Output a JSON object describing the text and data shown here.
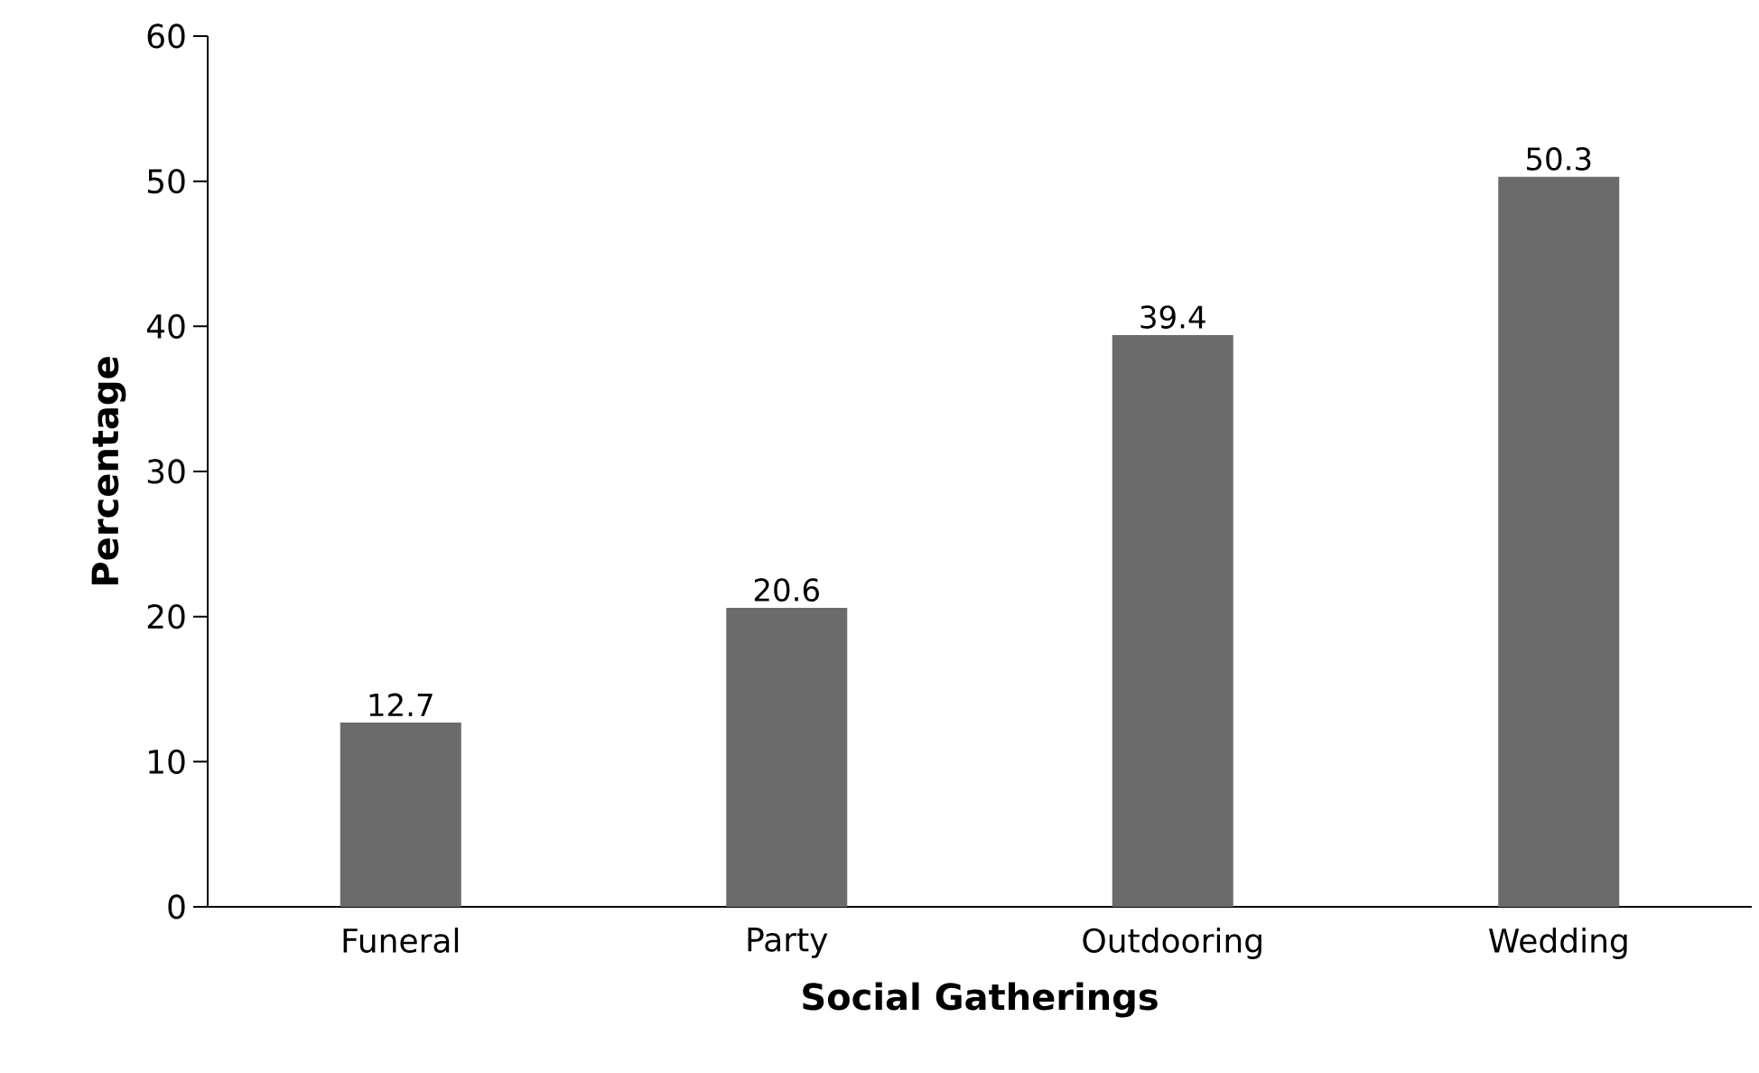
{
  "chart_data": {
    "type": "bar",
    "xlabel": "Social Gatherings",
    "ylabel": "Percentage",
    "categories": [
      "Funeral",
      "Party",
      "Outdooring",
      "Wedding"
    ],
    "values": [
      12.7,
      20.6,
      39.4,
      50.3
    ],
    "color": "#6b6b6b",
    "ylim": [
      0,
      60
    ],
    "yticks": [
      0,
      10,
      20,
      30,
      40,
      50,
      60
    ],
    "data_labels": true,
    "grid": false
  }
}
